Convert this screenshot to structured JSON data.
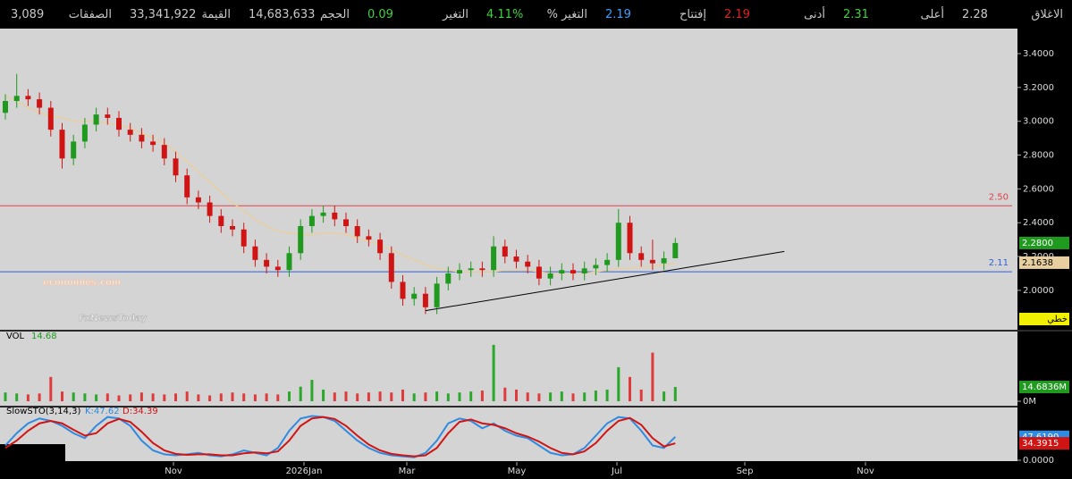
{
  "header": {
    "items": [
      {
        "label": "الاغلاق",
        "value": "2.28",
        "color": "#c8c8c8"
      },
      {
        "label": "أعلى",
        "value": "2.31",
        "color": "#3fd13f"
      },
      {
        "label": "أدنى",
        "value": "2.19",
        "color": "#e02020"
      },
      {
        "label": "إفتتاح",
        "value": "2.19",
        "color": "#3aa0ff"
      },
      {
        "label": "التغير %",
        "value": "4.11%",
        "color": "#3fd13f"
      },
      {
        "label": "التغير",
        "value": "0.09",
        "color": "#3fd13f"
      },
      {
        "label": "الحجم",
        "value": "14,683,633",
        "color": "#c8c8c8"
      },
      {
        "label": "القيمة",
        "value": "33,341,922",
        "color": "#c8c8c8"
      },
      {
        "label": "الصفقات",
        "value": "3,089",
        "color": "#c8c8c8"
      }
    ]
  },
  "watermark": [
    "economies.com",
    "FxNewsToday"
  ],
  "chart_data": [
    {
      "type": "candlestick",
      "up_color": "#1f9a1f",
      "down_color": "#d01414",
      "open": [
        3.05,
        3.12,
        3.15,
        3.13,
        3.08,
        2.95,
        2.78,
        2.88,
        2.98,
        3.04,
        3.02,
        2.95,
        2.92,
        2.88,
        2.86,
        2.78,
        2.68,
        2.55,
        2.52,
        2.44,
        2.38,
        2.36,
        2.26,
        2.18,
        2.14,
        2.12,
        2.22,
        2.38,
        2.44,
        2.46,
        2.42,
        2.38,
        2.32,
        2.3,
        2.22,
        2.05,
        1.95,
        1.98,
        1.9,
        2.04,
        2.1,
        2.12,
        2.13,
        2.12,
        2.26,
        2.2,
        2.17,
        2.14,
        2.07,
        2.1,
        2.12,
        2.1,
        2.13,
        2.15,
        2.18,
        2.4,
        2.22,
        2.18,
        2.16,
        2.19
      ],
      "high": [
        3.16,
        3.28,
        3.19,
        3.17,
        3.12,
        2.99,
        2.92,
        3.02,
        3.08,
        3.08,
        3.06,
        2.99,
        2.96,
        2.92,
        2.9,
        2.82,
        2.72,
        2.59,
        2.56,
        2.48,
        2.42,
        2.4,
        2.3,
        2.22,
        2.18,
        2.26,
        2.42,
        2.48,
        2.5,
        2.5,
        2.46,
        2.42,
        2.36,
        2.34,
        2.26,
        2.09,
        2.02,
        2.02,
        2.08,
        2.14,
        2.16,
        2.17,
        2.17,
        2.32,
        2.3,
        2.24,
        2.21,
        2.18,
        2.14,
        2.16,
        2.16,
        2.17,
        2.19,
        2.22,
        2.48,
        2.44,
        2.26,
        2.3,
        2.23,
        2.31
      ],
      "low": [
        3.01,
        3.08,
        3.09,
        3.04,
        2.91,
        2.72,
        2.74,
        2.84,
        2.94,
        2.98,
        2.91,
        2.88,
        2.84,
        2.82,
        2.74,
        2.64,
        2.51,
        2.48,
        2.4,
        2.34,
        2.32,
        2.22,
        2.14,
        2.1,
        2.08,
        2.08,
        2.18,
        2.34,
        2.4,
        2.38,
        2.34,
        2.28,
        2.26,
        2.18,
        2.01,
        1.91,
        1.91,
        1.86,
        1.86,
        2.0,
        2.06,
        2.08,
        2.08,
        2.08,
        2.16,
        2.13,
        2.1,
        2.03,
        2.03,
        2.06,
        2.06,
        2.06,
        2.09,
        2.11,
        2.14,
        2.18,
        2.14,
        2.12,
        2.12,
        2.19
      ],
      "close": [
        3.12,
        3.15,
        3.13,
        3.08,
        2.95,
        2.78,
        2.88,
        2.98,
        3.04,
        3.02,
        2.95,
        2.92,
        2.88,
        2.86,
        2.78,
        2.68,
        2.55,
        2.52,
        2.44,
        2.38,
        2.36,
        2.26,
        2.18,
        2.14,
        2.12,
        2.22,
        2.38,
        2.44,
        2.46,
        2.42,
        2.38,
        2.32,
        2.3,
        2.22,
        2.05,
        1.95,
        1.98,
        1.9,
        2.04,
        2.1,
        2.12,
        2.13,
        2.12,
        2.26,
        2.2,
        2.17,
        2.14,
        2.07,
        2.1,
        2.12,
        2.1,
        2.13,
        2.15,
        2.18,
        2.4,
        2.22,
        2.18,
        2.16,
        2.19,
        2.28
      ],
      "moving_average": {
        "color": "#e8cfa0",
        "values": [
          3.15,
          3.12,
          3.08,
          3.05,
          3.03,
          3.02,
          3.0,
          3.0,
          3.0,
          2.99,
          2.98,
          2.96,
          2.93,
          2.9,
          2.87,
          2.82,
          2.76,
          2.7,
          2.64,
          2.58,
          2.52,
          2.47,
          2.42,
          2.38,
          2.35,
          2.34,
          2.33,
          2.33,
          2.34,
          2.34,
          2.33,
          2.31,
          2.29,
          2.27,
          2.24,
          2.21,
          2.18,
          2.15,
          2.13,
          2.12,
          2.11,
          2.11,
          2.11,
          2.11,
          2.12,
          2.12,
          2.12,
          2.11,
          2.1,
          2.1,
          2.1,
          2.1,
          2.11,
          2.12,
          2.13,
          2.13,
          2.14,
          2.14,
          2.15,
          2.16
        ]
      },
      "hlines": [
        {
          "value": 2.5,
          "label": "2.50",
          "color": "#e0404a"
        },
        {
          "value": 2.11,
          "color": "#3060e0"
        }
      ],
      "trendline": [
        [
          37,
          1.88
        ],
        [
          68.6,
          2.23
        ]
      ],
      "ylim": [
        1.767,
        3.548
      ],
      "yticks": [
        {
          "value": 2.0,
          "label": "2.0000"
        },
        {
          "value": 2.2,
          "label": "2.2000"
        },
        {
          "value": 2.4,
          "label": "2.4000"
        },
        {
          "value": 2.6,
          "label": "2.6000"
        },
        {
          "value": 2.8,
          "label": "2.8000"
        },
        {
          "value": 3.0,
          "label": "3.0000"
        },
        {
          "value": 3.2,
          "label": "3.2000"
        },
        {
          "value": 3.4,
          "label": "3.4000"
        }
      ],
      "badges": [
        {
          "value": 2.28,
          "label": "2.2800",
          "color": "#1f9a1f",
          "text_color": "#ffffff"
        },
        {
          "value": 2.1638,
          "label": "2.1638",
          "color": "#e8cfa0",
          "text_color": "#000000"
        }
      ],
      "scale_label": "خطي",
      "x_axis_labels": [
        "Nov",
        "2026Jan",
        "Mar",
        "May",
        "Jul",
        "Sep",
        "Nov"
      ]
    },
    {
      "type": "bar",
      "title": "VOL",
      "title_value": "14.68",
      "color": "#e03a3a",
      "up_color": "#2aa82a",
      "values": [
        9,
        8,
        7,
        8,
        25,
        10,
        9,
        8,
        7,
        8,
        6,
        7,
        9,
        8,
        7,
        8,
        10,
        7,
        6,
        8,
        9,
        8,
        7,
        8,
        7,
        10,
        15,
        22,
        12,
        9,
        10,
        8,
        9,
        10,
        9,
        12,
        8,
        9,
        10,
        8,
        9,
        10,
        11,
        58,
        14,
        12,
        9,
        8,
        9,
        10,
        8,
        9,
        11,
        12,
        35,
        25,
        12,
        50,
        10,
        14.6836
      ],
      "ylim": [
        0,
        68
      ],
      "yticks": [
        {
          "value": 0,
          "label": "0M"
        }
      ],
      "badges": [
        {
          "value": 14.6836,
          "label": "14.6836M",
          "color": "#1f9a1f",
          "text_color": "#ffffff"
        }
      ]
    },
    {
      "type": "line",
      "title": "SlowSTO(3,14,3)",
      "series": [
        {
          "name": "K:47.62",
          "color": "#2f8ae0",
          "values": [
            30,
            55,
            75,
            85,
            80,
            70,
            55,
            45,
            70,
            88,
            85,
            70,
            40,
            20,
            12,
            10,
            12,
            15,
            10,
            8,
            12,
            20,
            15,
            10,
            25,
            60,
            85,
            90,
            88,
            80,
            60,
            40,
            25,
            15,
            10,
            8,
            6,
            15,
            40,
            75,
            85,
            80,
            65,
            75,
            60,
            50,
            45,
            30,
            15,
            10,
            12,
            25,
            50,
            75,
            88,
            85,
            60,
            30,
            25,
            47.62
          ]
        },
        {
          "name": "D:34.39",
          "color": "#d01414",
          "values": [
            25,
            40,
            60,
            75,
            80,
            75,
            62,
            50,
            55,
            75,
            84,
            78,
            58,
            35,
            20,
            13,
            11,
            12,
            12,
            10,
            10,
            14,
            16,
            14,
            18,
            40,
            70,
            85,
            88,
            84,
            70,
            50,
            32,
            20,
            13,
            10,
            8,
            10,
            25,
            55,
            78,
            83,
            75,
            72,
            65,
            55,
            48,
            38,
            25,
            15,
            12,
            18,
            35,
            60,
            80,
            86,
            72,
            45,
            28,
            34.39
          ]
        }
      ],
      "ylim": [
        0,
        100
      ],
      "yticks": [
        {
          "value": 0,
          "label": "0.0000"
        }
      ],
      "badges": [
        {
          "value": 47.619,
          "label": "47.6190",
          "color": "#2f8ae0",
          "text_color": "#ffffff"
        },
        {
          "value": 34.3915,
          "label": "34.3915",
          "color": "#d01414",
          "text_color": "#ffffff"
        }
      ]
    }
  ]
}
